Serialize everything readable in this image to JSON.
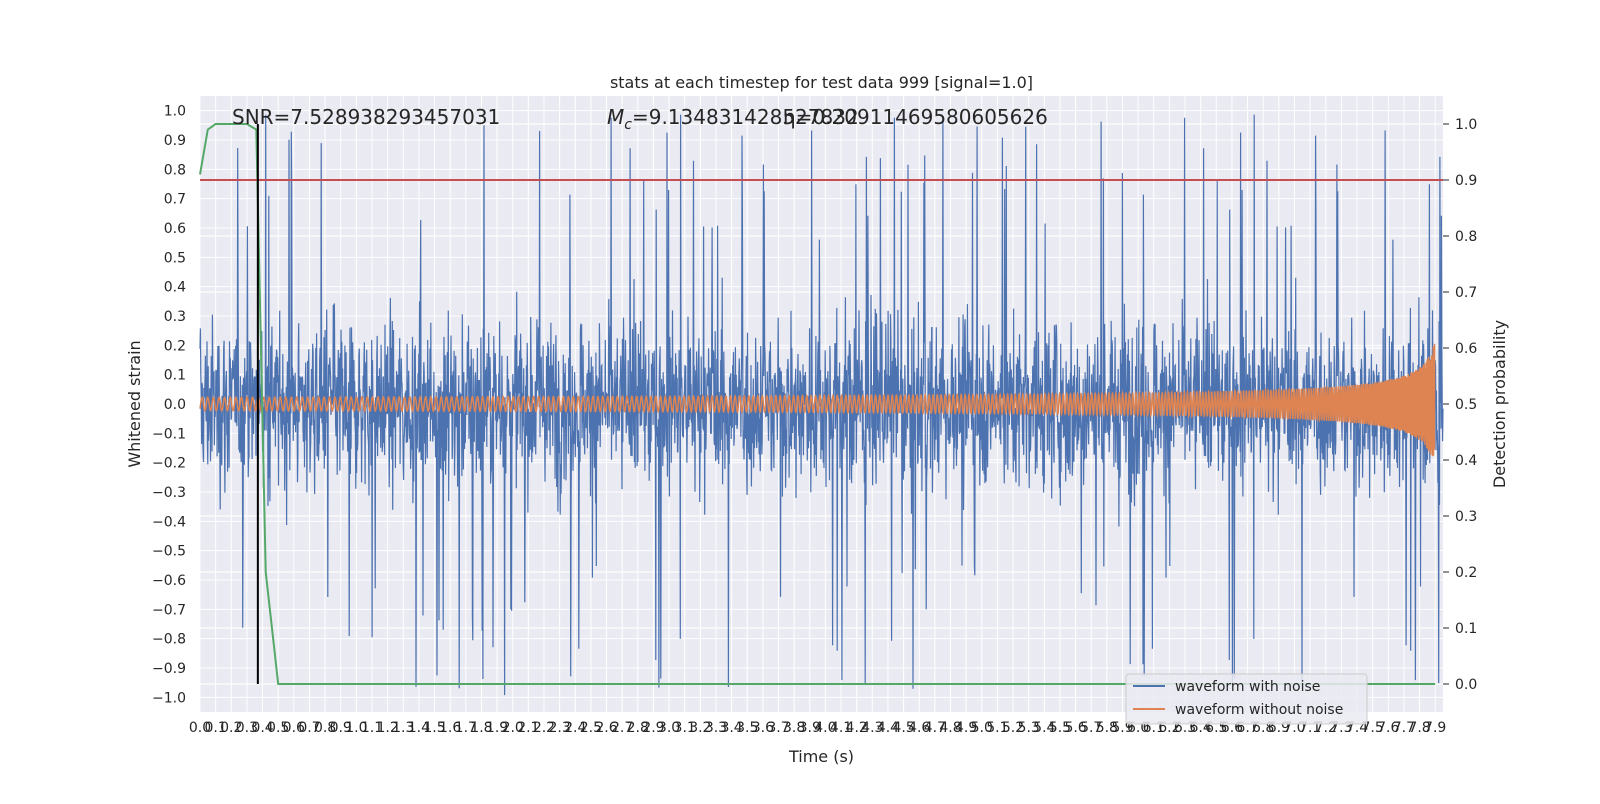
{
  "chart_data": {
    "type": "line",
    "title": "stats at each timestep for test data 999 [signal=1.0]",
    "xlabel": "Time (s)",
    "ylabel_left": "Whitened strain",
    "ylabel_right": "Detection probability",
    "xlim": [
      0,
      7.95
    ],
    "ylim_left": [
      -1.05,
      1.05
    ],
    "ylim_right": [
      -0.05,
      1.05
    ],
    "x_ticks": [
      "0.0",
      "0.1",
      "0.2",
      "0.3",
      "0.4",
      "0.5",
      "0.6",
      "0.7",
      "0.8",
      "0.9",
      "1.0",
      "1.1",
      "1.2",
      "1.3",
      "1.4",
      "1.5",
      "1.6",
      "1.7",
      "1.8",
      "1.9",
      "2.0",
      "2.1",
      "2.2",
      "2.3",
      "2.4",
      "2.5",
      "2.6",
      "2.7",
      "2.8",
      "2.9",
      "3.0",
      "3.1",
      "3.2",
      "3.3",
      "3.4",
      "3.5",
      "3.6",
      "3.7",
      "3.8",
      "3.9",
      "4.0",
      "4.1",
      "4.2",
      "4.3",
      "4.4",
      "4.5",
      "4.6",
      "4.7",
      "4.8",
      "4.9",
      "5.0",
      "5.1",
      "5.2",
      "5.3",
      "5.4",
      "5.5",
      "5.6",
      "5.7",
      "5.8",
      "5.9",
      "6.0",
      "6.1",
      "6.2",
      "6.3",
      "6.4",
      "6.5",
      "6.6",
      "6.7",
      "6.8",
      "6.9",
      "7.0",
      "7.1",
      "7.2",
      "7.3",
      "7.4",
      "7.5",
      "7.6",
      "7.7",
      "7.8",
      "7.9"
    ],
    "y_ticks_left": [
      "−1.0",
      "−0.9",
      "−0.8",
      "−0.7",
      "−0.6",
      "−0.5",
      "−0.4",
      "−0.3",
      "−0.2",
      "−0.1",
      "0.0",
      "0.1",
      "0.2",
      "0.3",
      "0.4",
      "0.5",
      "0.6",
      "0.7",
      "0.8",
      "0.9",
      "1.0"
    ],
    "y_ticks_right": [
      "0.0",
      "0.1",
      "0.2",
      "0.3",
      "0.4",
      "0.5",
      "0.6",
      "0.7",
      "0.8",
      "0.9",
      "1.0"
    ],
    "annotations": {
      "snr": "SNR=7.528938293457031",
      "mc_symbol": "M",
      "mc_subscript": "c",
      "mc_value": "=9.134831428527832",
      "eta": "η=0.20911469580605626"
    },
    "threshold": 0.9,
    "marker_time": 0.37,
    "series": [
      {
        "name": "waveform with noise",
        "color": "#4c72b0",
        "envelope_min": -1.0,
        "envelope_max": 1.0
      },
      {
        "name": "waveform without noise",
        "color": "#dd8452",
        "start_amplitude": 0.01,
        "end_amplitude": 0.22,
        "end_time": 7.9
      },
      {
        "name": "",
        "color": "#55a868",
        "x": [
          0.0,
          0.05,
          0.1,
          0.3,
          0.36,
          0.42,
          0.5,
          0.6,
          7.9
        ],
        "y": [
          0.91,
          0.99,
          1.0,
          1.0,
          0.99,
          0.2,
          0.0,
          0.0,
          0.0
        ]
      }
    ],
    "threshold_color": "#c44e52",
    "marker_color": "#000000",
    "legend": {
      "placement": "lower-right",
      "entries": [
        {
          "label": "waveform with noise",
          "color": "#4c72b0"
        },
        {
          "label": "waveform without noise",
          "color": "#dd8452"
        }
      ]
    }
  }
}
